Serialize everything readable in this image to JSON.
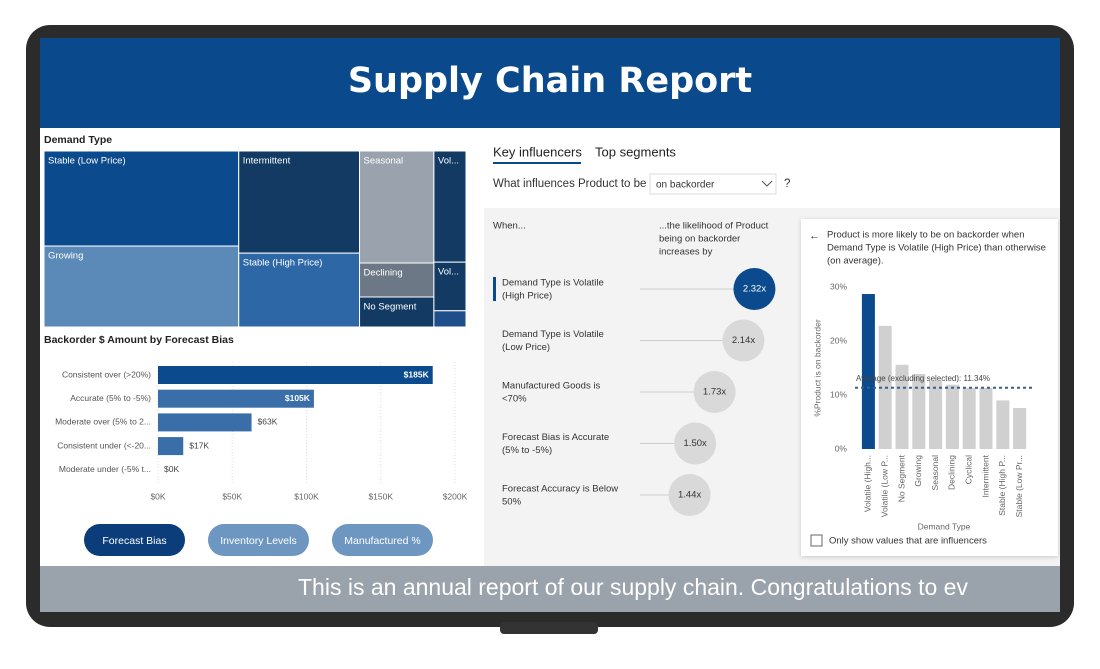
{
  "header": {
    "title": "Supply Chain Report"
  },
  "chart_data": [
    {
      "type": "treemap",
      "title": "Demand Type",
      "categories": [
        "Stable (Low Price)",
        "Growing",
        "Intermittent",
        "Stable (High Price)",
        "Seasonal",
        "Declining",
        "No Segment",
        "Vol...",
        "Vol...",
        null
      ],
      "values": [
        24.9,
        21.2,
        16.6,
        12.0,
        11.2,
        3.4,
        3.0,
        4.8,
        2.1,
        0.7
      ],
      "colors": [
        "#0b4a8c",
        "#5b8ab8",
        "#123a63",
        "#2d67a6",
        "#9aa3ad",
        "#6c7885",
        "#123a63",
        "#123a63",
        "#123a63",
        "#1f4f8a"
      ]
    },
    {
      "type": "bar",
      "title": "Backorder $ Amount by Forecast Bias",
      "categories": [
        "Consistent over (>20%)",
        "Accurate (5% to -5%)",
        "Moderate over (5% to 2...",
        "Consistent under (<-20...",
        "Moderate under (-5% t..."
      ],
      "values": [
        185000,
        105000,
        63000,
        17000,
        0
      ],
      "value_labels": [
        "$185K",
        "$105K",
        "$63K",
        "$17K",
        "$0K"
      ],
      "colors": [
        "#0b4a8c",
        "#3a6ea8",
        "#3a6ea8",
        "#3a6ea8",
        "#3a6ea8"
      ],
      "xlim": [
        0,
        200000
      ],
      "xticks": [
        {
          "value": 0,
          "label": "$0K"
        },
        {
          "value": 50000,
          "label": "$50K"
        },
        {
          "value": 100000,
          "label": "$100K"
        },
        {
          "value": 150000,
          "label": "$150K"
        },
        {
          "value": 200000,
          "label": "$200K"
        }
      ],
      "grid": true
    },
    {
      "type": "column",
      "x_label": "Demand Type",
      "y_label": "%Product is on backorder",
      "categories": [
        "Volatile (High...",
        "Volatile (Low P...",
        "No Segment",
        "Growing",
        "Seasonal",
        "Declining",
        "Cyclical",
        "Intermittent",
        "Stable (High P...",
        "Stable (Low Pr..."
      ],
      "values": [
        28.7,
        22.8,
        15.6,
        13.9,
        12.6,
        11.9,
        11.3,
        11.3,
        9.0,
        7.6
      ],
      "colors": [
        "#0b4a8c",
        "#d0d0d0",
        "#d0d0d0",
        "#d0d0d0",
        "#d0d0d0",
        "#d0d0d0",
        "#d0d0d0",
        "#d0d0d0",
        "#d0d0d0",
        "#d0d0d0"
      ],
      "ylim": [
        0,
        30
      ],
      "yticks": [
        {
          "value": 0,
          "label": "0%"
        },
        {
          "value": 10,
          "label": "10%"
        },
        {
          "value": 20,
          "label": "20%"
        },
        {
          "value": 30,
          "label": "30%"
        }
      ],
      "reference_line": {
        "value": 11.34,
        "label": "Average (excluding selected): 11.34%"
      }
    }
  ],
  "buttons": [
    "Forecast Bias",
    "Inventory Levels",
    "Manufactured %"
  ],
  "key_influencers": {
    "tabs": [
      "Key influencers",
      "Top segments"
    ],
    "question": "What influences Product to be",
    "dropdown": "on backorder",
    "help": "?",
    "when_header": "When...",
    "likelihood_header": [
      "...the likelihood of Product",
      "being on backorder",
      "increases by"
    ],
    "influencers": [
      {
        "label": [
          "Demand Type is Volatile",
          "(High Price)"
        ],
        "value": 2.32,
        "value_label": "2.32x"
      },
      {
        "label": [
          "Demand Type is Volatile",
          "(Low Price)"
        ],
        "value": 2.14,
        "value_label": "2.14x"
      },
      {
        "label": [
          "Manufactured Goods is",
          "<70%"
        ],
        "value": 1.73,
        "value_label": "1.73x"
      },
      {
        "label": [
          "Forecast Bias is Accurate",
          "(5% to -5%)"
        ],
        "value": 1.5,
        "value_label": "1.50x"
      },
      {
        "label": [
          "Forecast Accuracy is Below",
          "50%"
        ],
        "value": 1.44,
        "value_label": "1.44x"
      }
    ],
    "detail": [
      "Product is more likely to be on backorder when",
      "Demand Type is Volatile (High Price) than otherwise",
      "(on average)."
    ],
    "checkbox_label": "Only show values that are influencers"
  },
  "ticker": "This is an annual report of our supply chain. Congratulations to ev"
}
